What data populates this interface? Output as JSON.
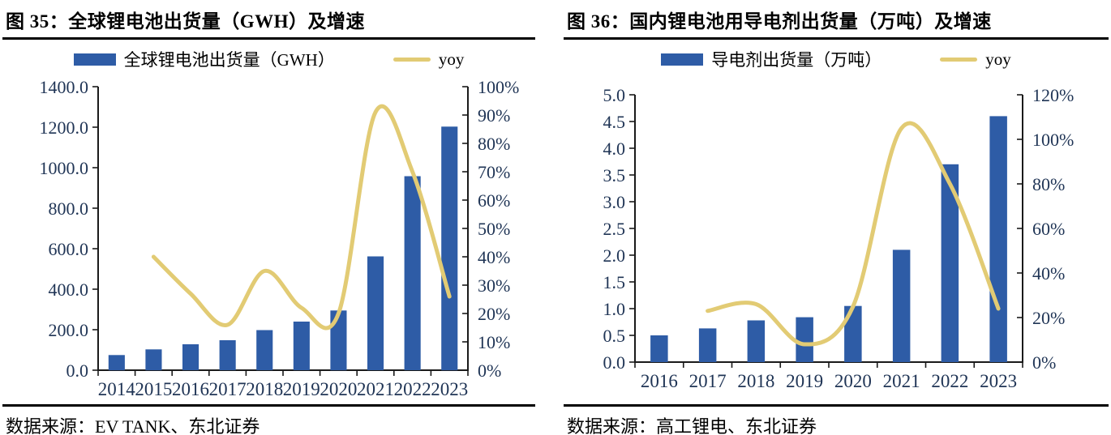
{
  "colors": {
    "bar_blue": "#2E5CA6",
    "line_yellow": "#E2CB74",
    "axis_black": "#1A1A1A",
    "tick_label": "#1F3455"
  },
  "figures": [
    {
      "title": "图 35：全球锂电池出货量（GWH）及增速",
      "legend": {
        "bars": "全球锂电池出货量（GWH）",
        "line": "yoy"
      },
      "source": "数据来源：EV TANK、东北证券"
    },
    {
      "title": "图 36：国内锂电池用导电剂出货量（万吨）及增速",
      "legend": {
        "bars": "导电剂出货量（万吨）",
        "line": "yoy"
      },
      "source": "数据来源：高工锂电、东北证券"
    }
  ],
  "chart_data": [
    {
      "type": "bar",
      "subtype": "bar-line-combo",
      "title": "全球锂电池出货量（GWH）及增速",
      "categories": [
        "2014",
        "2015",
        "2016",
        "2017",
        "2018",
        "2019",
        "2020",
        "2021",
        "2022",
        "2023"
      ],
      "series": [
        {
          "name": "全球锂电池出货量（GWH）",
          "type": "bar",
          "axis": "left",
          "values": [
            75,
            103,
            128,
            148,
            198,
            240,
            295,
            562,
            958,
            1203
          ]
        },
        {
          "name": "yoy",
          "type": "line",
          "axis": "right",
          "unit": "%",
          "values": [
            null,
            40,
            27,
            16,
            35,
            22,
            20,
            91,
            70,
            26
          ]
        }
      ],
      "left_axis": {
        "min": 0,
        "max": 1400,
        "step": 200,
        "labels": [
          "0.0",
          "200.0",
          "400.0",
          "600.0",
          "800.0",
          "1000.0",
          "1200.0",
          "1400.0"
        ]
      },
      "right_axis": {
        "min": 0,
        "max": 100,
        "step": 10,
        "labels": [
          "0%",
          "10%",
          "20%",
          "30%",
          "40%",
          "50%",
          "60%",
          "70%",
          "80%",
          "90%",
          "100%"
        ]
      },
      "grid": false,
      "legend_position": "top"
    },
    {
      "type": "bar",
      "subtype": "bar-line-combo",
      "title": "国内锂电池用导电剂出货量（万吨）及增速",
      "categories": [
        "2016",
        "2017",
        "2018",
        "2019",
        "2020",
        "2021",
        "2022",
        "2023"
      ],
      "series": [
        {
          "name": "导电剂出货量（万吨）",
          "type": "bar",
          "axis": "left",
          "values": [
            0.5,
            0.63,
            0.78,
            0.84,
            1.05,
            2.1,
            3.7,
            4.6
          ]
        },
        {
          "name": "yoy",
          "type": "line",
          "axis": "right",
          "unit": "%",
          "values": [
            null,
            23,
            26,
            8,
            25,
            105,
            80,
            24
          ]
        }
      ],
      "left_axis": {
        "min": 0,
        "max": 5,
        "step": 0.5,
        "labels": [
          "0.0",
          "0.5",
          "1.0",
          "1.5",
          "2.0",
          "2.5",
          "3.0",
          "3.5",
          "4.0",
          "4.5",
          "5.0"
        ]
      },
      "right_axis": {
        "min": 0,
        "max": 120,
        "step": 20,
        "labels": [
          "0%",
          "20%",
          "40%",
          "60%",
          "80%",
          "100%",
          "120%"
        ]
      },
      "grid": false,
      "legend_position": "top"
    }
  ]
}
